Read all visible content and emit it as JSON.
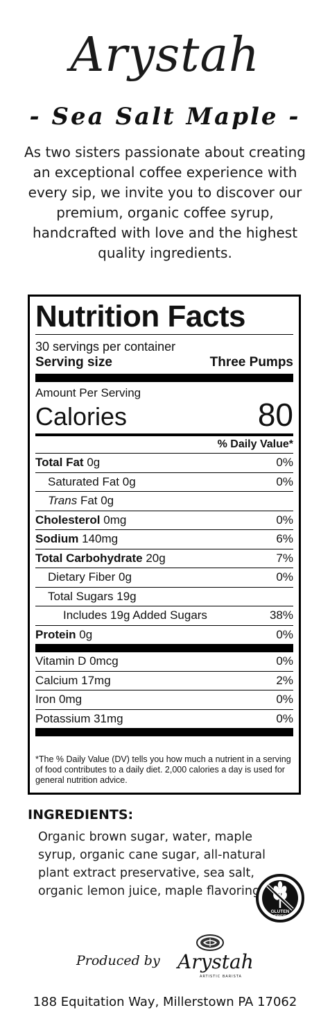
{
  "brand": "Arystah",
  "flavor": "- Sea Salt Maple -",
  "intro": "As two sisters passionate about creating an exceptional coffee experience with every sip, we invite you to discover our premium, organic coffee syrup, handcrafted with love and the highest quality ingredients.",
  "nutrition": {
    "title": "Nutrition Facts",
    "servings": "30 servings per container",
    "serving_size_label": "Serving size",
    "serving_size_value": "Three Pumps",
    "amount_label": "Amount Per Serving",
    "calories_label": "Calories",
    "calories_value": "80",
    "dv_header": "% Daily Value*",
    "rows": [
      {
        "name": "Total Fat",
        "amount": "0g",
        "dv": "0%"
      },
      {
        "name": "Saturated Fat",
        "amount": "0g",
        "dv": "0%"
      },
      {
        "name": "Trans",
        "amount": "Fat 0g",
        "dv": ""
      },
      {
        "name": "Cholesterol",
        "amount": "0mg",
        "dv": "0%"
      },
      {
        "name": "Sodium",
        "amount": "140mg",
        "dv": "6%"
      },
      {
        "name": "Total Carbohydrate",
        "amount": "20g",
        "dv": "7%"
      },
      {
        "name": "Dietary Fiber",
        "amount": "0g",
        "dv": "0%"
      },
      {
        "name": "Total Sugars",
        "amount": "19g",
        "dv": ""
      },
      {
        "name": "Includes 19g Added Sugars",
        "amount": "",
        "dv": "38%"
      },
      {
        "name": "Protein",
        "amount": "0g",
        "dv": "0%"
      }
    ],
    "vitamins": [
      {
        "label": "Vitamin D 0mcg",
        "dv": "0%"
      },
      {
        "label": "Calcium 17mg",
        "dv": "2%"
      },
      {
        "label": "Iron 0mg",
        "dv": "0%"
      },
      {
        "label": "Potassium 31mg",
        "dv": "0%"
      }
    ],
    "footnote": "*The % Daily Value (DV) tells you how much a nutrient in a serving of food contributes to a daily diet. 2,000 calories a day is used for general nutrition advice."
  },
  "ingredients": {
    "title": "INGREDIENTS:",
    "text": "Organic brown sugar, water, maple syrup, organic cane sugar, all-natural plant extract preservative, sea salt, organic lemon juice, maple flavoring"
  },
  "gluten_badge": {
    "line1": "GLUTEN",
    "line2": "FREE",
    "icon": "wheat-crossed-icon"
  },
  "produced_by": "Produced by",
  "produced_brand": "Arystah",
  "produced_sub": "ARTISTIC BARISTA",
  "address": "188 Equitation Way, Millerstown PA 17062"
}
